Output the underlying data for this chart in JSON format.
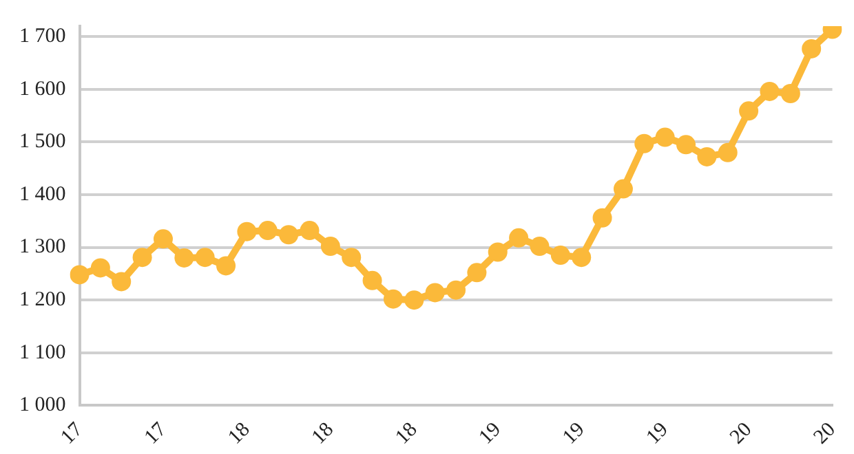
{
  "chart_data": {
    "type": "line",
    "categories": [
      "17",
      null,
      null,
      null,
      "17",
      null,
      null,
      null,
      "18",
      null,
      null,
      null,
      "18",
      null,
      null,
      null,
      "18",
      null,
      null,
      null,
      "19",
      null,
      null,
      null,
      "19",
      null,
      null,
      null,
      "19",
      null,
      null,
      null,
      "20",
      null,
      null,
      null,
      "20"
    ],
    "series": [
      {
        "color": "#fbb93a",
        "values": [
          1248,
          1261,
          1235,
          1281,
          1316,
          1280,
          1281,
          1265,
          1330,
          1332,
          1324,
          1332,
          1302,
          1281,
          1237,
          1202,
          1200,
          1214,
          1219,
          1252,
          1291,
          1318,
          1302,
          1285,
          1281,
          1356,
          1411,
          1497,
          1509,
          1495,
          1472,
          1480,
          1559,
          1596,
          1592,
          1677,
          1714
        ]
      }
    ],
    "ylim": [
      1000,
      1720
    ],
    "yticks": [
      {
        "value": 1000,
        "label": "1 000"
      },
      {
        "value": 1100,
        "label": "1 100"
      },
      {
        "value": 1200,
        "label": "1 200"
      },
      {
        "value": 1300,
        "label": "1 300"
      },
      {
        "value": 1400,
        "label": "1 400"
      },
      {
        "value": 1500,
        "label": "1 500"
      },
      {
        "value": 1600,
        "label": "1 600"
      },
      {
        "value": 1700,
        "label": "1 700"
      }
    ],
    "grid": "y",
    "marker": "circle",
    "line_style": "solid",
    "legend": false
  }
}
